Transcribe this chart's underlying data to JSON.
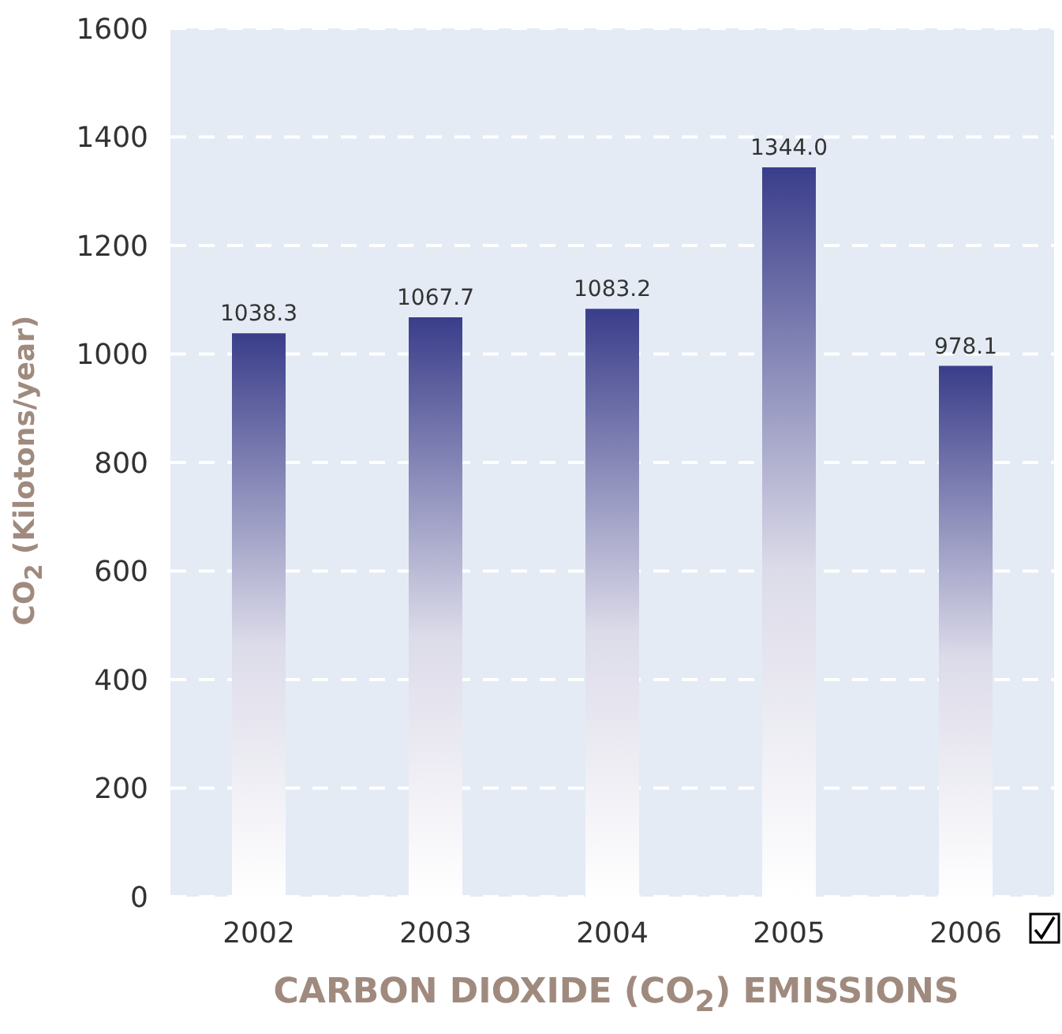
{
  "chart_data": {
    "type": "bar",
    "title": "CARBON DIOXIDE (CO$_{2}$) EMISSIONS",
    "ylabel": "CO$_{2}$ (Kilotons/year)",
    "categories": [
      "2002",
      "2003",
      "2004",
      "2005",
      "2006"
    ],
    "values": [
      1038.3,
      1067.7,
      1083.2,
      1344.0,
      978.1
    ],
    "value_labels": [
      "1038.3",
      "1067.7",
      "1083.2",
      "1344.0",
      "978.1"
    ],
    "color": "#3a3d8a",
    "ylim": [
      0,
      1600
    ],
    "yticks": [
      0,
      200,
      400,
      600,
      800,
      1000,
      1200,
      1400,
      1600
    ],
    "grid": "y"
  }
}
